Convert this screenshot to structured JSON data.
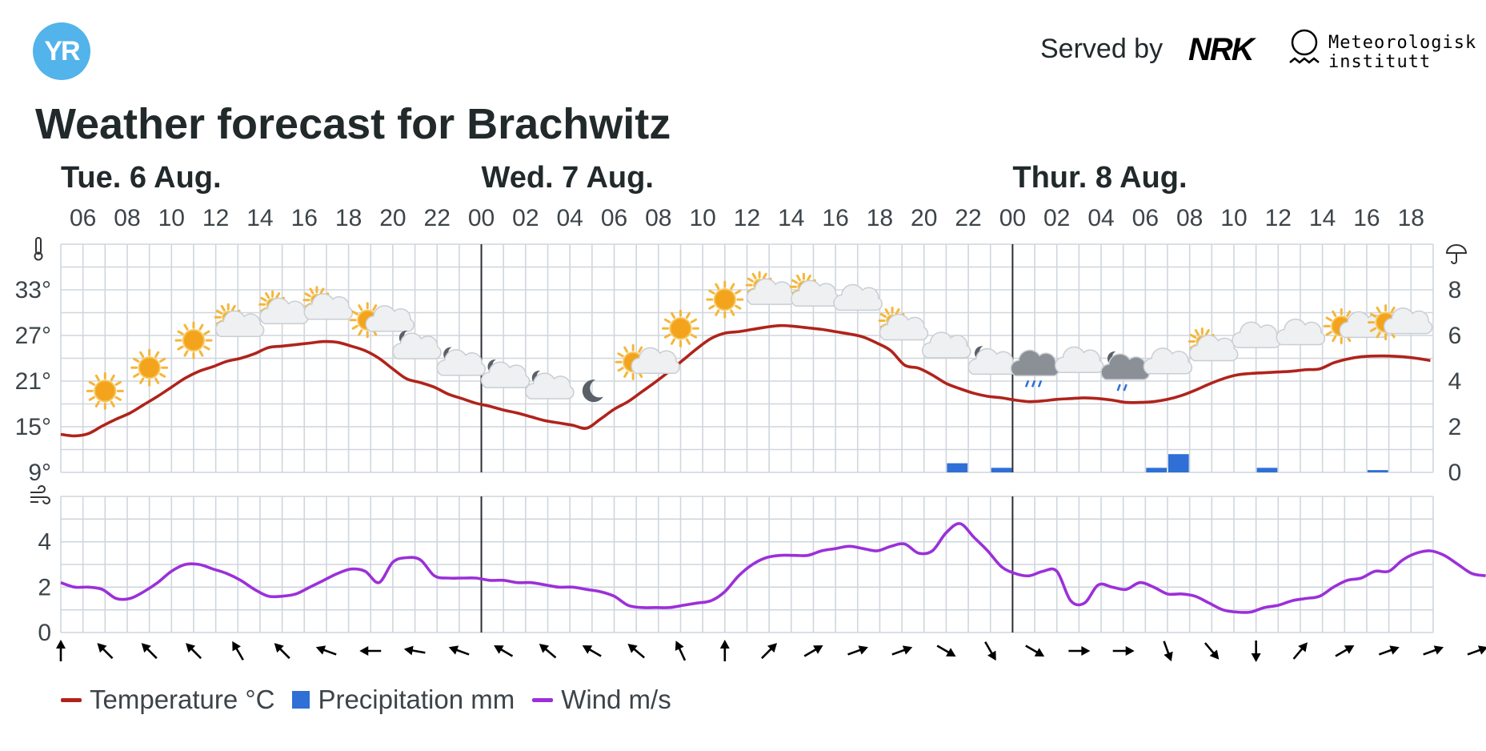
{
  "header": {
    "logo_text": "YR",
    "served_by": "Served by",
    "nrk_text": "NRK",
    "met_line1": "Meteorologisk",
    "met_line2": "institutt",
    "title": "Weather forecast for Brachwitz"
  },
  "colors": {
    "temperature": "#b0231b",
    "precipitation": "#2f6fd6",
    "wind": "#9b30d9",
    "grid": "#cfd6dd",
    "logo": "#53b3eb"
  },
  "legend": {
    "temperature": "Temperature °C",
    "precipitation": "Precipitation mm",
    "wind": "Wind m/s"
  },
  "chart_data": {
    "type": "line",
    "start": "Tue 6 Aug 05:00",
    "days": [
      "Tue. 6 Aug.",
      "Wed. 7 Aug.",
      "Thur. 8 Aug."
    ],
    "hour_ticks": [
      "06",
      "08",
      "10",
      "12",
      "14",
      "16",
      "18",
      "20",
      "22",
      "00",
      "02",
      "04",
      "06",
      "08",
      "10",
      "12",
      "14",
      "16",
      "18",
      "20",
      "22",
      "00",
      "02",
      "04",
      "06",
      "08",
      "10",
      "12",
      "14",
      "16",
      "18"
    ],
    "temp_axis": {
      "ticks": [
        "33°",
        "27°",
        "21°",
        "15°",
        "9°"
      ],
      "ylim": [
        9,
        39
      ]
    },
    "precip_axis": {
      "ticks": [
        "8",
        "6",
        "4",
        "2",
        "0"
      ],
      "ylim": [
        0,
        10
      ]
    },
    "wind_axis": {
      "ticks": [
        "4",
        "2",
        "0"
      ],
      "ylim": [
        0,
        6
      ]
    },
    "series": [
      {
        "name": "Temperature °C",
        "values": [
          14.0,
          13.8,
          14.1,
          15.1,
          16.0,
          16.8,
          17.9,
          19.0,
          20.2,
          21.4,
          22.3,
          22.9,
          23.6,
          24.0,
          24.6,
          25.4,
          25.6,
          25.8,
          26.0,
          26.2,
          26.1,
          25.6,
          25.0,
          24.0,
          22.6,
          21.3,
          20.8,
          20.2,
          19.3,
          18.7,
          18.1,
          17.7,
          17.2,
          16.8,
          16.3,
          15.8,
          15.5,
          15.2,
          14.8,
          16.0,
          17.3,
          18.3,
          19.6,
          20.9,
          22.3,
          23.8,
          25.3,
          26.6,
          27.3,
          27.5,
          27.8,
          28.1,
          28.3,
          28.2,
          28.0,
          27.8,
          27.5,
          27.2,
          26.8,
          26.0,
          25.0,
          23.1,
          22.7,
          21.8,
          20.7,
          20.0,
          19.4,
          19.0,
          18.8,
          18.5,
          18.3,
          18.4,
          18.6,
          18.7,
          18.8,
          18.7,
          18.5,
          18.2,
          18.2,
          18.3,
          18.6,
          19.1,
          19.8,
          20.6,
          21.3,
          21.8,
          22.0,
          22.1,
          22.2,
          22.3,
          22.5,
          22.6,
          23.4,
          23.9,
          24.2,
          24.3,
          24.3,
          24.2,
          24.0,
          23.7
        ]
      },
      {
        "name": "Wind m/s",
        "values": [
          2.2,
          2.0,
          2.0,
          1.9,
          1.5,
          1.5,
          1.8,
          2.2,
          2.7,
          3.0,
          3.0,
          2.8,
          2.6,
          2.3,
          1.9,
          1.6,
          1.6,
          1.7,
          2.0,
          2.3,
          2.6,
          2.8,
          2.7,
          2.2,
          3.1,
          3.3,
          3.2,
          2.5,
          2.4,
          2.4,
          2.4,
          2.3,
          2.3,
          2.2,
          2.2,
          2.1,
          2.0,
          2.0,
          1.9,
          1.8,
          1.6,
          1.2,
          1.1,
          1.1,
          1.1,
          1.2,
          1.3,
          1.4,
          1.8,
          2.5,
          3.0,
          3.3,
          3.4,
          3.4,
          3.4,
          3.6,
          3.7,
          3.8,
          3.7,
          3.6,
          3.8,
          3.9,
          3.5,
          3.6,
          4.4,
          4.8,
          4.2,
          3.6,
          2.9,
          2.6,
          2.5,
          2.7,
          2.7,
          1.4,
          1.3,
          2.1,
          2.0,
          1.9,
          2.2,
          2.0,
          1.7,
          1.7,
          1.6,
          1.3,
          1.0,
          0.9,
          0.9,
          1.1,
          1.2,
          1.4,
          1.5,
          1.6,
          2.0,
          2.3,
          2.4,
          2.7,
          2.7,
          3.2,
          3.5,
          3.6,
          3.4,
          3.0,
          2.6,
          2.5
        ]
      }
    ],
    "precipitation": [
      {
        "hour": 40,
        "mm": 0.4
      },
      {
        "hour": 42,
        "mm": 0.2
      },
      {
        "hour": 49,
        "mm": 0.2
      },
      {
        "hour": 50,
        "mm": 0.8
      },
      {
        "hour": 54,
        "mm": 0.2
      },
      {
        "hour": 59,
        "mm": 0.1
      }
    ],
    "weather_icons": [
      {
        "hour": 2,
        "icon": "sun-icon"
      },
      {
        "hour": 4,
        "icon": "sun-icon"
      },
      {
        "hour": 6,
        "icon": "sun-icon"
      },
      {
        "hour": 8,
        "icon": "partly-cloudy-day-icon"
      },
      {
        "hour": 10,
        "icon": "partly-cloudy-day-icon"
      },
      {
        "hour": 12,
        "icon": "partly-cloudy-day-icon"
      },
      {
        "hour": 14,
        "icon": "sun-cloud-icon"
      },
      {
        "hour": 16,
        "icon": "partly-cloudy-night-icon"
      },
      {
        "hour": 18,
        "icon": "partly-cloudy-night-icon"
      },
      {
        "hour": 20,
        "icon": "partly-cloudy-night-icon"
      },
      {
        "hour": 22,
        "icon": "partly-cloudy-night-icon"
      },
      {
        "hour": 24,
        "icon": "moon-icon"
      },
      {
        "hour": 26,
        "icon": "sun-cloud-icon"
      },
      {
        "hour": 28,
        "icon": "sun-icon"
      },
      {
        "hour": 30,
        "icon": "sun-icon"
      },
      {
        "hour": 32,
        "icon": "partly-cloudy-day-icon"
      },
      {
        "hour": 34,
        "icon": "partly-cloudy-day-icon"
      },
      {
        "hour": 36,
        "icon": "cloud-icon"
      },
      {
        "hour": 38,
        "icon": "partly-cloudy-day-icon"
      },
      {
        "hour": 40,
        "icon": "cloud-icon"
      },
      {
        "hour": 42,
        "icon": "partly-cloudy-night-icon"
      },
      {
        "hour": 44,
        "icon": "rain-cloud-icon"
      },
      {
        "hour": 46,
        "icon": "cloud-icon"
      },
      {
        "hour": 48,
        "icon": "rain-night-icon"
      },
      {
        "hour": 50,
        "icon": "cloud-icon"
      },
      {
        "hour": 52,
        "icon": "partly-cloudy-day-icon"
      },
      {
        "hour": 54,
        "icon": "cloud-icon"
      },
      {
        "hour": 56,
        "icon": "cloud-icon"
      },
      {
        "hour": 58,
        "icon": "sun-cloud-icon"
      },
      {
        "hour": 60,
        "icon": "sun-cloud-icon"
      }
    ],
    "wind_direction_deg": [
      180,
      135,
      135,
      135,
      150,
      135,
      110,
      90,
      100,
      110,
      120,
      130,
      120,
      130,
      155,
      180,
      225,
      240,
      250,
      250,
      300,
      330,
      300,
      270,
      270,
      340,
      320,
      0,
      220,
      240,
      250,
      250,
      250
    ],
    "day_dividers_hour": [
      19,
      43
    ]
  }
}
